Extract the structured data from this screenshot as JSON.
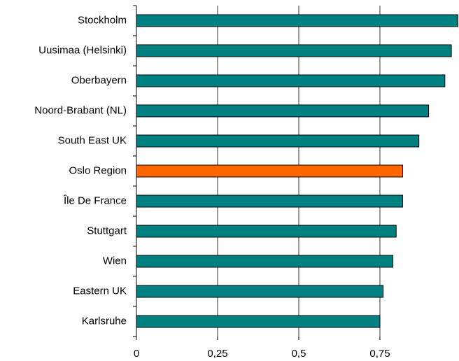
{
  "chart_data": {
    "type": "barh",
    "categories": [
      "Stockholm",
      "Uusimaa (Helsinki)",
      "Oberbayern",
      "Noord-Brabant (NL)",
      "South East UK",
      "Oslo Region",
      "Île De France",
      "Stuttgart",
      "Wien",
      "Eastern UK",
      "Karlsruhe"
    ],
    "values": [
      0.99,
      0.97,
      0.95,
      0.9,
      0.87,
      0.82,
      0.82,
      0.8,
      0.79,
      0.76,
      0.75
    ],
    "colors": [
      "#008080",
      "#008080",
      "#008080",
      "#008080",
      "#008080",
      "#ff6600",
      "#008080",
      "#008080",
      "#008080",
      "#008080",
      "#008080"
    ],
    "xlim": [
      0,
      1
    ],
    "xticks": [
      0,
      {
        "value": 0.25,
        "label": "0,25"
      },
      {
        "value": 0.5,
        "label": "0,5"
      },
      {
        "value": 0.75,
        "label": "0,75"
      }
    ],
    "grid": true
  }
}
